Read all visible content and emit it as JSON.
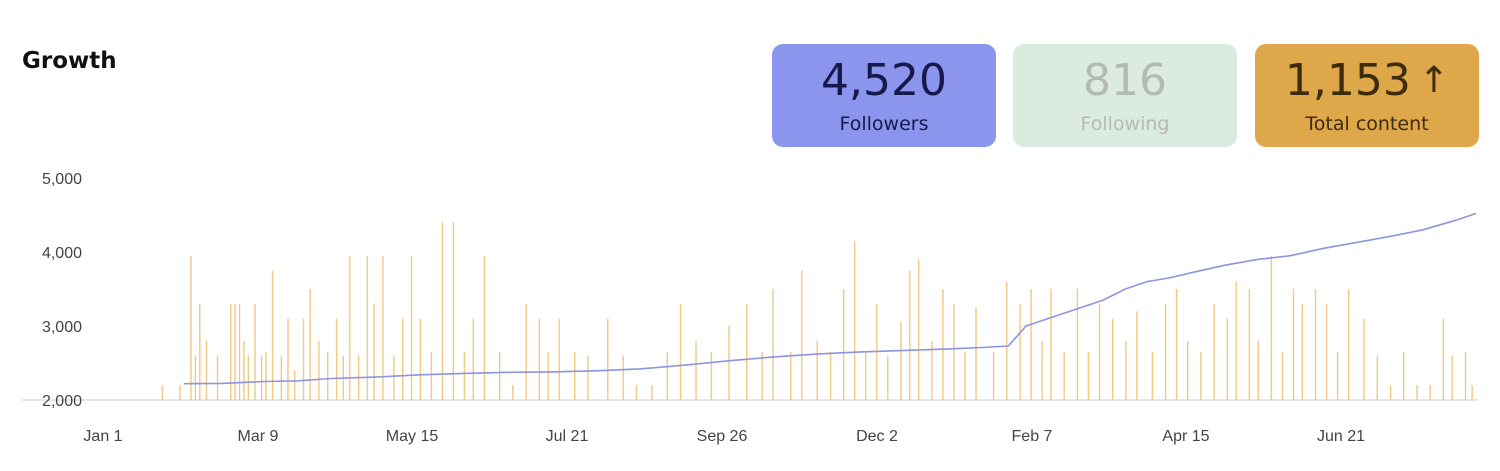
{
  "header": {
    "title": "Growth"
  },
  "stats": [
    {
      "id": "followers",
      "value": "4,520",
      "label": "Followers",
      "bg": "#8b95ee",
      "fg": "#16194a",
      "arrow": ""
    },
    {
      "id": "following",
      "value": "816",
      "label": "Following",
      "bg": "#dcebdf",
      "fg": "#b3b9b4",
      "arrow": ""
    },
    {
      "id": "content",
      "value": "1,153",
      "label": "Total content",
      "bg": "#dea84a",
      "fg": "#3c2b0c",
      "arrow": "↑"
    }
  ],
  "colors": {
    "line": "#8b95e0",
    "bars": "#f0c983",
    "axis": "#cccccc"
  },
  "chart_data": {
    "type": "line",
    "title": "",
    "xlabel": "",
    "ylabel": "",
    "x_ticks": [
      "Jan 1",
      "Mar 9",
      "May 15",
      "Jul 21",
      "Sep 26",
      "Dec 2",
      "Feb 7",
      "Apr 15",
      "Jun 21"
    ],
    "x_tick_days": [
      0,
      67,
      134,
      201,
      268,
      335,
      402,
      469,
      536
    ],
    "y_ticks": [
      "2,000",
      "3,000",
      "4,000",
      "5,000"
    ],
    "y_tick_values": [
      2000,
      3000,
      4000,
      5000
    ],
    "xlim": [
      0,
      610
    ],
    "ylim": [
      2000,
      5000
    ],
    "series": [
      {
        "name": "Followers",
        "kind": "line",
        "points": [
          [
            23,
            2220
          ],
          [
            40,
            2225
          ],
          [
            60,
            2250
          ],
          [
            75,
            2260
          ],
          [
            90,
            2290
          ],
          [
            110,
            2310
          ],
          [
            130,
            2340
          ],
          [
            150,
            2360
          ],
          [
            170,
            2375
          ],
          [
            190,
            2380
          ],
          [
            210,
            2395
          ],
          [
            230,
            2420
          ],
          [
            250,
            2470
          ],
          [
            270,
            2530
          ],
          [
            290,
            2580
          ],
          [
            310,
            2620
          ],
          [
            330,
            2650
          ],
          [
            350,
            2670
          ],
          [
            370,
            2690
          ],
          [
            385,
            2710
          ],
          [
            397,
            2730
          ],
          [
            405,
            3000
          ],
          [
            420,
            3150
          ],
          [
            440,
            3350
          ],
          [
            450,
            3500
          ],
          [
            460,
            3600
          ],
          [
            470,
            3650
          ],
          [
            480,
            3720
          ],
          [
            495,
            3820
          ],
          [
            510,
            3900
          ],
          [
            525,
            3950
          ],
          [
            540,
            4050
          ],
          [
            555,
            4130
          ],
          [
            570,
            4210
          ],
          [
            585,
            4300
          ],
          [
            600,
            4430
          ],
          [
            609,
            4520
          ]
        ]
      },
      {
        "name": "Total content",
        "kind": "bars",
        "note": "daily activity values",
        "values": [
          [
            13,
            2200
          ],
          [
            21,
            2200
          ],
          [
            26,
            3950
          ],
          [
            28,
            2600
          ],
          [
            30,
            3300
          ],
          [
            33,
            2800
          ],
          [
            38,
            2600
          ],
          [
            44,
            3300
          ],
          [
            46,
            3300
          ],
          [
            48,
            3300
          ],
          [
            50,
            2800
          ],
          [
            52,
            2600
          ],
          [
            55,
            3300
          ],
          [
            58,
            2600
          ],
          [
            60,
            2650
          ],
          [
            63,
            3750
          ],
          [
            67,
            2600
          ],
          [
            70,
            3100
          ],
          [
            73,
            2400
          ],
          [
            77,
            3100
          ],
          [
            80,
            3500
          ],
          [
            84,
            2800
          ],
          [
            88,
            2650
          ],
          [
            92,
            3100
          ],
          [
            95,
            2600
          ],
          [
            98,
            3950
          ],
          [
            102,
            2600
          ],
          [
            106,
            3950
          ],
          [
            109,
            3300
          ],
          [
            113,
            3950
          ],
          [
            118,
            2600
          ],
          [
            122,
            3100
          ],
          [
            126,
            3950
          ],
          [
            130,
            3100
          ],
          [
            135,
            2650
          ],
          [
            140,
            4400
          ],
          [
            145,
            4400
          ],
          [
            150,
            2650
          ],
          [
            154,
            3100
          ],
          [
            159,
            3950
          ],
          [
            166,
            2650
          ],
          [
            172,
            2200
          ],
          [
            178,
            3300
          ],
          [
            184,
            3100
          ],
          [
            188,
            2650
          ],
          [
            193,
            3100
          ],
          [
            200,
            2650
          ],
          [
            206,
            2600
          ],
          [
            215,
            3100
          ],
          [
            222,
            2600
          ],
          [
            228,
            2200
          ],
          [
            235,
            2200
          ],
          [
            242,
            2650
          ],
          [
            248,
            3300
          ],
          [
            255,
            2800
          ],
          [
            262,
            2650
          ],
          [
            270,
            3000
          ],
          [
            278,
            3300
          ],
          [
            285,
            2650
          ],
          [
            290,
            3500
          ],
          [
            298,
            2650
          ],
          [
            303,
            3750
          ],
          [
            310,
            2800
          ],
          [
            316,
            2650
          ],
          [
            322,
            3500
          ],
          [
            327,
            4150
          ],
          [
            332,
            2650
          ],
          [
            337,
            3300
          ],
          [
            342,
            2600
          ],
          [
            348,
            3050
          ],
          [
            352,
            3750
          ],
          [
            356,
            3900
          ],
          [
            362,
            2800
          ],
          [
            367,
            3500
          ],
          [
            372,
            3300
          ],
          [
            377,
            2650
          ],
          [
            382,
            3250
          ],
          [
            390,
            2650
          ],
          [
            396,
            3600
          ],
          [
            402,
            3300
          ],
          [
            407,
            3500
          ],
          [
            412,
            2800
          ],
          [
            416,
            3500
          ],
          [
            422,
            2650
          ],
          [
            428,
            3500
          ],
          [
            433,
            2650
          ],
          [
            438,
            3300
          ],
          [
            444,
            3100
          ],
          [
            450,
            2800
          ],
          [
            455,
            3200
          ],
          [
            462,
            2650
          ],
          [
            468,
            3300
          ],
          [
            473,
            3500
          ],
          [
            478,
            2800
          ],
          [
            484,
            2650
          ],
          [
            490,
            3300
          ],
          [
            496,
            3100
          ],
          [
            500,
            3600
          ],
          [
            506,
            3500
          ],
          [
            510,
            2800
          ],
          [
            516,
            3950
          ],
          [
            521,
            2650
          ],
          [
            526,
            3500
          ],
          [
            530,
            3300
          ],
          [
            536,
            3500
          ],
          [
            541,
            3300
          ],
          [
            546,
            2650
          ],
          [
            551,
            3500
          ],
          [
            558,
            3100
          ],
          [
            564,
            2600
          ],
          [
            570,
            2200
          ],
          [
            576,
            2650
          ],
          [
            582,
            2200
          ],
          [
            588,
            2200
          ],
          [
            594,
            3100
          ],
          [
            598,
            2600
          ],
          [
            604,
            2650
          ],
          [
            607,
            2200
          ]
        ]
      }
    ],
    "grid": false,
    "legend": "none"
  }
}
